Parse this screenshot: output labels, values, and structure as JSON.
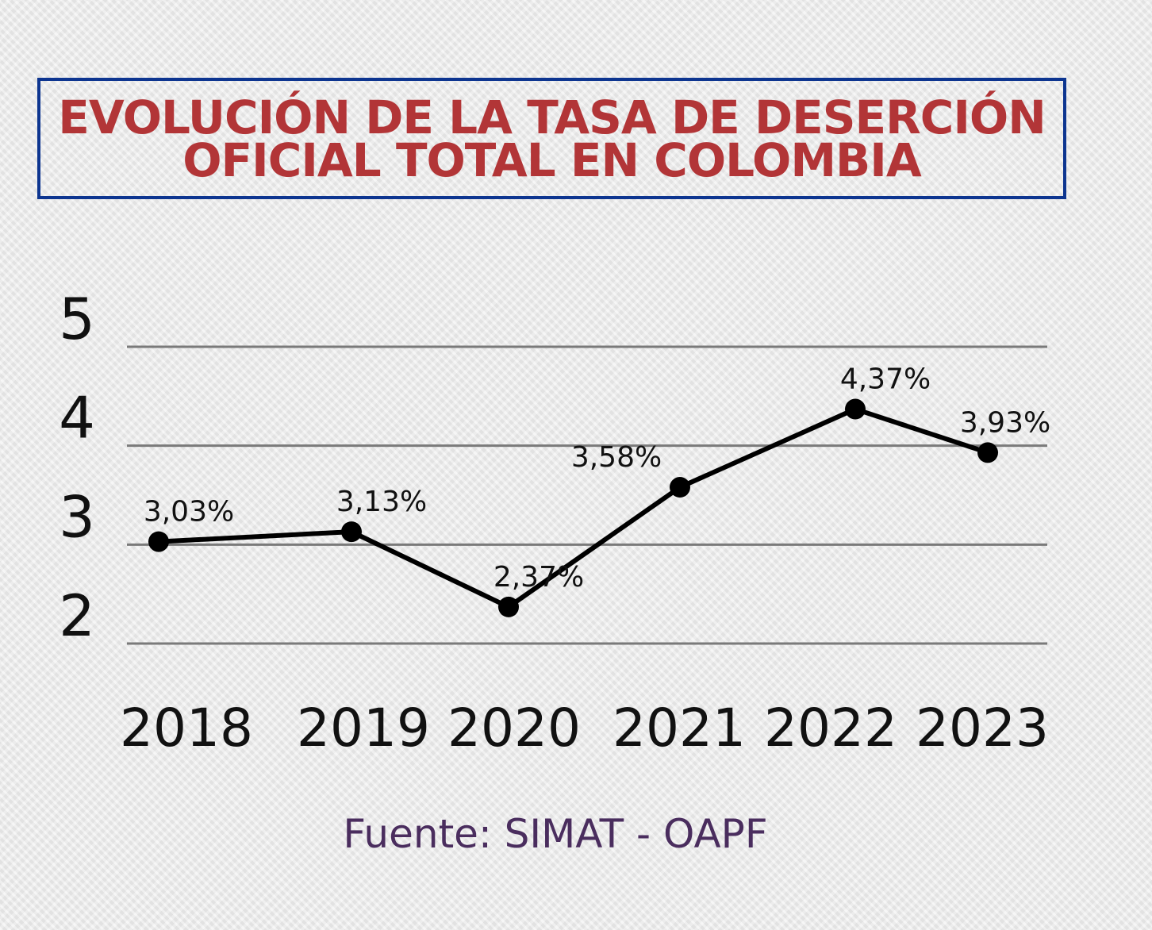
{
  "title": {
    "line1": "EVOLUCIÓN DE LA TASA DE DESERCIÓN",
    "line2": "OFICIAL TOTAL EN COLOMBIA"
  },
  "source": "Fuente: SIMAT - OAPF",
  "colors": {
    "title": "#b23537",
    "border": "#0d3590",
    "source": "#4a2d5e",
    "line": "#000000",
    "grid": "#7a7a7a"
  },
  "chart_data": {
    "type": "line",
    "title": "EVOLUCIÓN DE LA TASA DE DESERCIÓN OFICIAL TOTAL EN COLOMBIA",
    "xlabel": "",
    "ylabel": "",
    "categories": [
      "2018",
      "2019",
      "2020",
      "2021",
      "2022",
      "2023"
    ],
    "values": [
      3.03,
      3.13,
      2.37,
      3.58,
      4.37,
      3.93
    ],
    "labels": [
      "3,03%",
      "3,13%",
      "2,37%",
      "3,58%",
      "4,37%",
      "3,93%"
    ],
    "yticks": [
      "2",
      "3",
      "4",
      "5"
    ],
    "ylim": [
      2,
      5
    ],
    "grid": true
  }
}
